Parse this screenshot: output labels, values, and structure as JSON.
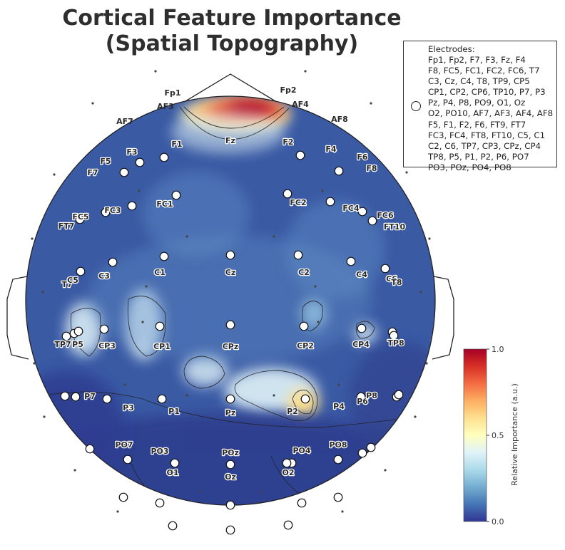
{
  "title_lines": [
    "Cortical Feature Importance",
    "(Spatial Topography)"
  ],
  "legend": {
    "title": "Electrodes:",
    "lines": [
      "Fp1, Fp2, F7, F3, Fz, F4",
      "F8, FC5, FC1, FC2, FC6, T7",
      "C3, Cz, C4, T8, TP9, CP5",
      "CP1, CP2, CP6, TP10, P7, P3",
      "Pz, P4, P8, PO9, O1, Oz",
      "O2, PO10, AF7, AF3, AF4, AF8",
      "F5, F1, F2, F6, FT9, FT7",
      "FC3, FC4, FT8, FT10, C5, C1",
      "C2, C6, TP7, CP3, CPz, CP4",
      "TP8, P5, P1, P2, P6, PO7",
      "PO3, POz, PO4, PO8"
    ]
  },
  "colorbar": {
    "label": "Relative Importance (a.u.)",
    "ticks": [
      "0.0",
      "0.5",
      "1.0"
    ],
    "tick_values": [
      0.0,
      0.5,
      1.0
    ],
    "colormap": "RdYlBu_r"
  },
  "chart_data": {
    "type": "heatmap",
    "title": "Cortical Feature Importance\n(Spatial Topography)",
    "value_range": [
      0.0,
      1.0
    ],
    "colorbar_label": "Relative Importance (a.u.)",
    "hotspots": [
      {
        "electrode": "AF4",
        "value": 1.0
      },
      {
        "electrode": "Fp2",
        "value": 0.95
      },
      {
        "electrode": "AF3",
        "value": 0.75
      },
      {
        "electrode": "P2",
        "value": 0.6
      },
      {
        "electrode": "CP1",
        "value": 0.32
      },
      {
        "electrode": "CP5",
        "value": 0.3
      },
      {
        "electrode": "CP2",
        "value": 0.25
      },
      {
        "electrode": "CP4",
        "value": 0.25
      },
      {
        "electrode": "Fz",
        "value": 0.3
      },
      {
        "electrode": "F2",
        "value": 0.2
      }
    ],
    "electrodes": [
      {
        "name": "Fp1",
        "label": true,
        "outside": true
      },
      {
        "name": "Fp2",
        "label": true,
        "outside": true
      },
      {
        "name": "AF7",
        "label": true,
        "outside": true
      },
      {
        "name": "AF3",
        "label": true,
        "outside": true
      },
      {
        "name": "AF4",
        "label": true,
        "outside": true
      },
      {
        "name": "AF8",
        "label": true,
        "outside": true
      },
      {
        "name": "F7",
        "label": true
      },
      {
        "name": "F5",
        "label": true
      },
      {
        "name": "F3",
        "label": true
      },
      {
        "name": "F1",
        "label": true
      },
      {
        "name": "Fz",
        "label": true
      },
      {
        "name": "F2",
        "label": true
      },
      {
        "name": "F4",
        "label": true
      },
      {
        "name": "F6",
        "label": true
      },
      {
        "name": "F8",
        "label": true
      },
      {
        "name": "FT7",
        "label": true
      },
      {
        "name": "FC5",
        "label": true
      },
      {
        "name": "FC3",
        "label": true
      },
      {
        "name": "FC1",
        "label": true
      },
      {
        "name": "FC2",
        "label": true
      },
      {
        "name": "FC4",
        "label": true
      },
      {
        "name": "FC6",
        "label": true
      },
      {
        "name": "FT10",
        "label": true
      },
      {
        "name": "T7",
        "label": true
      },
      {
        "name": "C5",
        "label": true
      },
      {
        "name": "C3",
        "label": true
      },
      {
        "name": "C1",
        "label": true
      },
      {
        "name": "Cz",
        "label": true
      },
      {
        "name": "C2",
        "label": true
      },
      {
        "name": "C4",
        "label": true
      },
      {
        "name": "C6",
        "label": true
      },
      {
        "name": "T8",
        "label": true
      },
      {
        "name": "TP7",
        "label": true
      },
      {
        "name": "P5",
        "label": true
      },
      {
        "name": "CP3",
        "label": true
      },
      {
        "name": "CP1",
        "label": true
      },
      {
        "name": "CPz",
        "label": true
      },
      {
        "name": "CP2",
        "label": true
      },
      {
        "name": "CP4",
        "label": true
      },
      {
        "name": "TP8",
        "label": true
      },
      {
        "name": "P7",
        "label": true
      },
      {
        "name": "P3",
        "label": true
      },
      {
        "name": "P1",
        "label": true
      },
      {
        "name": "Pz",
        "label": true
      },
      {
        "name": "P2",
        "label": true
      },
      {
        "name": "P4",
        "label": true
      },
      {
        "name": "P6",
        "label": true
      },
      {
        "name": "P8",
        "label": true
      },
      {
        "name": "PO7",
        "label": true
      },
      {
        "name": "PO3",
        "label": true
      },
      {
        "name": "POz",
        "label": true
      },
      {
        "name": "PO4",
        "label": true
      },
      {
        "name": "PO8",
        "label": true
      },
      {
        "name": "O1",
        "label": true
      },
      {
        "name": "Oz",
        "label": true
      },
      {
        "name": "O2",
        "label": true
      },
      {
        "name": "FT9",
        "label": false
      },
      {
        "name": "TP9",
        "label": false
      },
      {
        "name": "TP10",
        "label": false
      },
      {
        "name": "CP5",
        "label": false
      },
      {
        "name": "CP6",
        "label": false
      },
      {
        "name": "PO9",
        "label": false
      },
      {
        "name": "PO10",
        "label": false
      }
    ]
  }
}
